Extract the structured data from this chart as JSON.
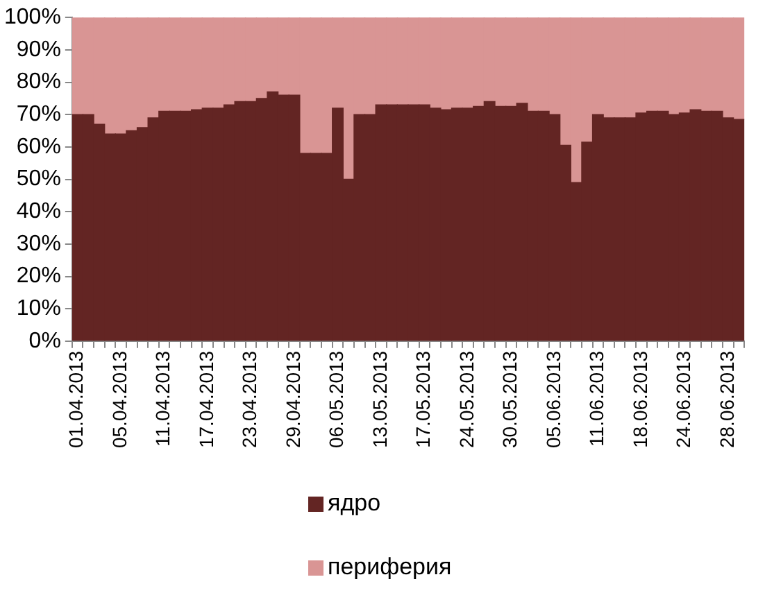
{
  "chart_data": {
    "type": "bar",
    "stacked": true,
    "categories": [
      "01.04.2013",
      null,
      null,
      null,
      "05.04.2013",
      null,
      null,
      null,
      "11.04.2013",
      null,
      null,
      null,
      "17.04.2013",
      null,
      null,
      null,
      "23.04.2013",
      null,
      null,
      null,
      "29.04.2013",
      null,
      null,
      null,
      "06.05.2013",
      null,
      null,
      null,
      "13.05.2013",
      null,
      null,
      null,
      "17.05.2013",
      null,
      null,
      null,
      "24.05.2013",
      null,
      null,
      null,
      "30.05.2013",
      null,
      null,
      null,
      "05.06.2013",
      null,
      null,
      null,
      "11.06.2013",
      null,
      null,
      null,
      "18.06.2013",
      null,
      null,
      null,
      "24.06.2013",
      null,
      null,
      null,
      "28.06.2013",
      null
    ],
    "series": [
      {
        "name": "ядро",
        "color": "#632523",
        "values": [
          70,
          70,
          67,
          64,
          64,
          65,
          66,
          69,
          71,
          71,
          71,
          71.5,
          72,
          72,
          73,
          74,
          74,
          75,
          77,
          76,
          76,
          58,
          58,
          58,
          72,
          50,
          70,
          70,
          73,
          73,
          73,
          73,
          73,
          72,
          71.5,
          72,
          72,
          72.5,
          74,
          72.5,
          72.5,
          73.5,
          71,
          71,
          70,
          60.5,
          49,
          61.5,
          70,
          69,
          69,
          69,
          70.5,
          71,
          71,
          70,
          70.5,
          71.5,
          71,
          71,
          69,
          68.5
        ]
      },
      {
        "name": "периферия",
        "color": "#d99594",
        "values": [
          30,
          30,
          33,
          36,
          36,
          35,
          34,
          31,
          29,
          29,
          29,
          28.5,
          28,
          28,
          27,
          26,
          26,
          25,
          23,
          24,
          24,
          42,
          42,
          42,
          28,
          50,
          30,
          30,
          27,
          27,
          27,
          27,
          27,
          28,
          28.5,
          28,
          28,
          27.5,
          26,
          27.5,
          27.5,
          26.5,
          29,
          29,
          30,
          39.5,
          51,
          38.5,
          30,
          31,
          31,
          31,
          29.5,
          29,
          29,
          30,
          29.5,
          28.5,
          29,
          29,
          31,
          31.5
        ]
      }
    ],
    "ylim": [
      0,
      100
    ],
    "yticks": [
      {
        "value": 0,
        "label": "0%"
      },
      {
        "value": 10,
        "label": "10%"
      },
      {
        "value": 20,
        "label": "20%"
      },
      {
        "value": 30,
        "label": "30%"
      },
      {
        "value": 40,
        "label": "40%"
      },
      {
        "value": 50,
        "label": "50%"
      },
      {
        "value": 60,
        "label": "60%"
      },
      {
        "value": 70,
        "label": "70%"
      },
      {
        "value": 80,
        "label": "80%"
      },
      {
        "value": 90,
        "label": "90%"
      },
      {
        "value": 100,
        "label": "100%"
      }
    ],
    "legend": "bottom"
  }
}
